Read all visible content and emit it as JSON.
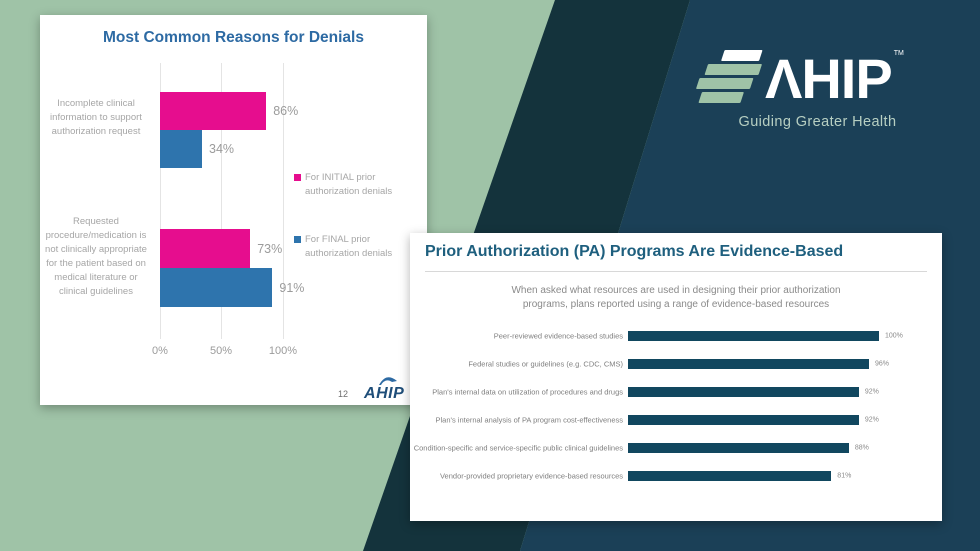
{
  "colors": {
    "sage": "#9fc3a7",
    "teal_band": "#14333c",
    "navy": "#1b4057",
    "card1_title": "#2d6aa3",
    "pink": "#e60d8e",
    "blue": "#2e74ad",
    "card2_title": "#1e5f7e",
    "evidence_bar": "#11475f",
    "footer_blue": "#1f4e79"
  },
  "brand": {
    "logo_text": "ΛHIP",
    "trademark": "TM",
    "tagline": "Guiding Greater Health"
  },
  "denials_card": {
    "title": "Most Common Reasons for Denials",
    "page_number": "12",
    "footer_logo_text": "AHIP",
    "legend": [
      {
        "label": "For INITIAL prior authorization denials",
        "color": "#e60d8e"
      },
      {
        "label": "For FINAL prior authorization denials",
        "color": "#2e74ad"
      }
    ]
  },
  "evidence_card": {
    "title": "Prior Authorization (PA) Programs Are Evidence-Based",
    "subtitle_line1": "When asked what resources are used in designing their prior authorization",
    "subtitle_line2": "programs, plans reported using a range of evidence-based resources"
  },
  "chart_data": [
    {
      "type": "bar",
      "orientation": "horizontal",
      "title": "Most Common Reasons for Denials",
      "categories": [
        "Incomplete clinical information to support authorization request",
        "Requested procedure/medication is not clinically appropriate for the patient based on medical literature or clinical guidelines"
      ],
      "series": [
        {
          "name": "For INITIAL prior authorization denials",
          "color": "#e60d8e",
          "values": [
            86,
            73
          ]
        },
        {
          "name": "For FINAL prior authorization denials",
          "color": "#2e74ad",
          "values": [
            34,
            91
          ]
        }
      ],
      "data_labels": [
        [
          "86%",
          "73%"
        ],
        [
          "34%",
          "91%"
        ]
      ],
      "xlim": [
        0,
        100
      ],
      "x_ticks": [
        "0%",
        "50%",
        "100%"
      ],
      "legend_position": "right",
      "grid": true
    },
    {
      "type": "bar",
      "orientation": "horizontal",
      "title": "Prior Authorization (PA) Programs Are Evidence-Based",
      "categories": [
        "Peer-reviewed evidence-based studies",
        "Federal studies or guidelines (e.g. CDC, CMS)",
        "Plan's internal data on utilization of procedures and drugs",
        "Plan's internal analysis of PA program cost-effectiveness",
        "Condition-specific and service-specific public clinical guidelines",
        "Vendor-provided proprietary evidence-based resources"
      ],
      "values": [
        100,
        96,
        92,
        92,
        88,
        81
      ],
      "data_labels": [
        "100%",
        "96%",
        "92%",
        "92%",
        "88%",
        "81%"
      ],
      "xlim": [
        0,
        100
      ],
      "grid": false,
      "bar_color": "#11475f"
    }
  ]
}
